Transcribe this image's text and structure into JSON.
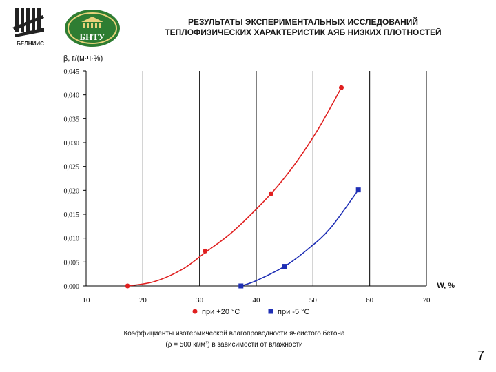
{
  "header": {
    "title_line1": "РЕЗУЛЬТАТЫ ЭКСПЕРИМЕНТАЛЬНЫХ ИССЛЕДОВАНИЙ",
    "title_line2": "ТЕПЛОФИЗИЧЕСКИХ ХАРАКТЕРИСТИК АЯБ НИЗКИХ ПЛОТНОСТЕЙ",
    "logo1_text": "БЕЛНИИС",
    "logo2_text": "БНТУ"
  },
  "colors": {
    "series1": "#e02020",
    "series2": "#1f2fb5",
    "logo_green": "#2e7d32"
  },
  "chart_data": {
    "type": "line",
    "ylabel": "β, г/(м·ч·%)",
    "xlabel": "W, %",
    "xlim": [
      10,
      70
    ],
    "ylim": [
      0,
      0.045
    ],
    "x_ticks": [
      "10",
      "20",
      "30",
      "40",
      "50",
      "60",
      "70"
    ],
    "y_ticks": [
      "0,000",
      "0,005",
      "0,010",
      "0,015",
      "0,020",
      "0,025",
      "0,030",
      "0,035",
      "0,040",
      "0,045"
    ],
    "grid": "vertical",
    "legend_position": "bottom",
    "series": [
      {
        "name": "при +20 °С",
        "color": "#e02020",
        "marker": "circle",
        "points": [
          [
            17.3,
            0.0
          ],
          [
            31,
            0.0073
          ],
          [
            42.6,
            0.0193
          ],
          [
            55,
            0.0415
          ]
        ],
        "curve": [
          [
            17.3,
            0.0
          ],
          [
            22,
            0.0009
          ],
          [
            27,
            0.0035
          ],
          [
            31,
            0.007
          ],
          [
            36,
            0.0115
          ],
          [
            42.6,
            0.0193
          ],
          [
            47,
            0.0258
          ],
          [
            51,
            0.033
          ],
          [
            55,
            0.0415
          ]
        ]
      },
      {
        "name": "при -5 °С",
        "color": "#1f2fb5",
        "marker": "square",
        "points": [
          [
            37.3,
            0.0
          ],
          [
            45,
            0.0041
          ],
          [
            58,
            0.0201
          ]
        ],
        "curve": [
          [
            37.3,
            0.0
          ],
          [
            40,
            0.0011
          ],
          [
            45,
            0.0041
          ],
          [
            49,
            0.0076
          ],
          [
            53,
            0.012
          ],
          [
            58,
            0.0201
          ]
        ]
      }
    ]
  },
  "caption": {
    "line1": "Коэффициенты изотермической влагопроводности ячеистого бетона",
    "line2": "(ρ = 500 кг/м³) в зависимости от влажности"
  },
  "page_number": "7"
}
